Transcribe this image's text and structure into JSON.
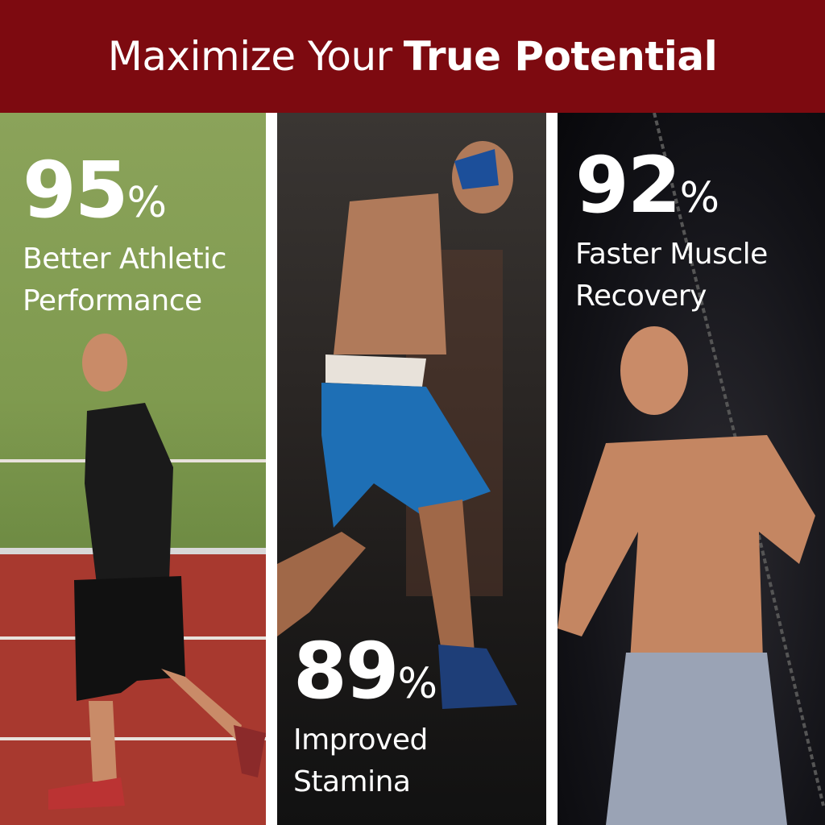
{
  "header": {
    "title_regular": "Maximize Your",
    "title_bold": "True Potential",
    "background": "#7d0a10"
  },
  "panels": [
    {
      "value": "95",
      "unit": "%",
      "line1": "Better Athletic",
      "line2": "Performance"
    },
    {
      "value": "89",
      "unit": "%",
      "line1": "Improved",
      "line2": "Stamina"
    },
    {
      "value": "92",
      "unit": "%",
      "line1": "Faster Muscle",
      "line2": "Recovery"
    }
  ]
}
